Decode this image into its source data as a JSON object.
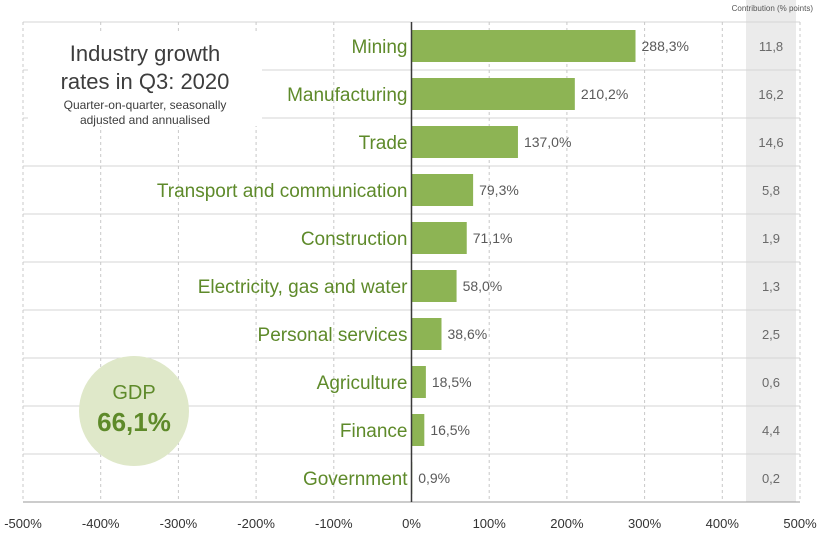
{
  "title": "Industry growth rates in Q3: 2020",
  "title_lines": [
    "Industry growth",
    "rates in Q3: 2020"
  ],
  "subtitle_lines": [
    "Quarter-on-quarter, seasonally",
    "adjusted and annualised"
  ],
  "gdp": {
    "label": "GDP",
    "value": "66,1%"
  },
  "contribution_header": "Contribution (% points)",
  "colors": {
    "bar": "#8db454",
    "label": "#5e8a2a",
    "contrib_band": "#ebebeb"
  },
  "chart_data": {
    "type": "bar",
    "orientation": "horizontal",
    "categories": [
      "Mining",
      "Manufacturing",
      "Trade",
      "Transport and communication",
      "Construction",
      "Electricity, gas and water",
      "Personal services",
      "Agriculture",
      "Finance",
      "Government"
    ],
    "values": [
      288.3,
      210.2,
      137.0,
      79.3,
      71.1,
      58.0,
      38.6,
      18.5,
      16.5,
      0.9
    ],
    "value_labels": [
      "288,3%",
      "210,2%",
      "137,0%",
      "79,3%",
      "71,1%",
      "58,0%",
      "38,6%",
      "18,5%",
      "16,5%",
      "0,9%"
    ],
    "contributions": [
      "11,8",
      "16,2",
      "14,6",
      "5,8",
      "1,9",
      "1,3",
      "2,5",
      "0,6",
      "4,4",
      "0,2"
    ],
    "xlim": [
      -500,
      500
    ],
    "xticks": [
      -500,
      -400,
      -300,
      -200,
      -100,
      0,
      100,
      200,
      300,
      400,
      500
    ],
    "xtick_labels": [
      "-500%",
      "-400%",
      "-300%",
      "-200%",
      "-100%",
      "0%",
      "100%",
      "200%",
      "300%",
      "400%",
      "500%"
    ],
    "grid": true
  }
}
